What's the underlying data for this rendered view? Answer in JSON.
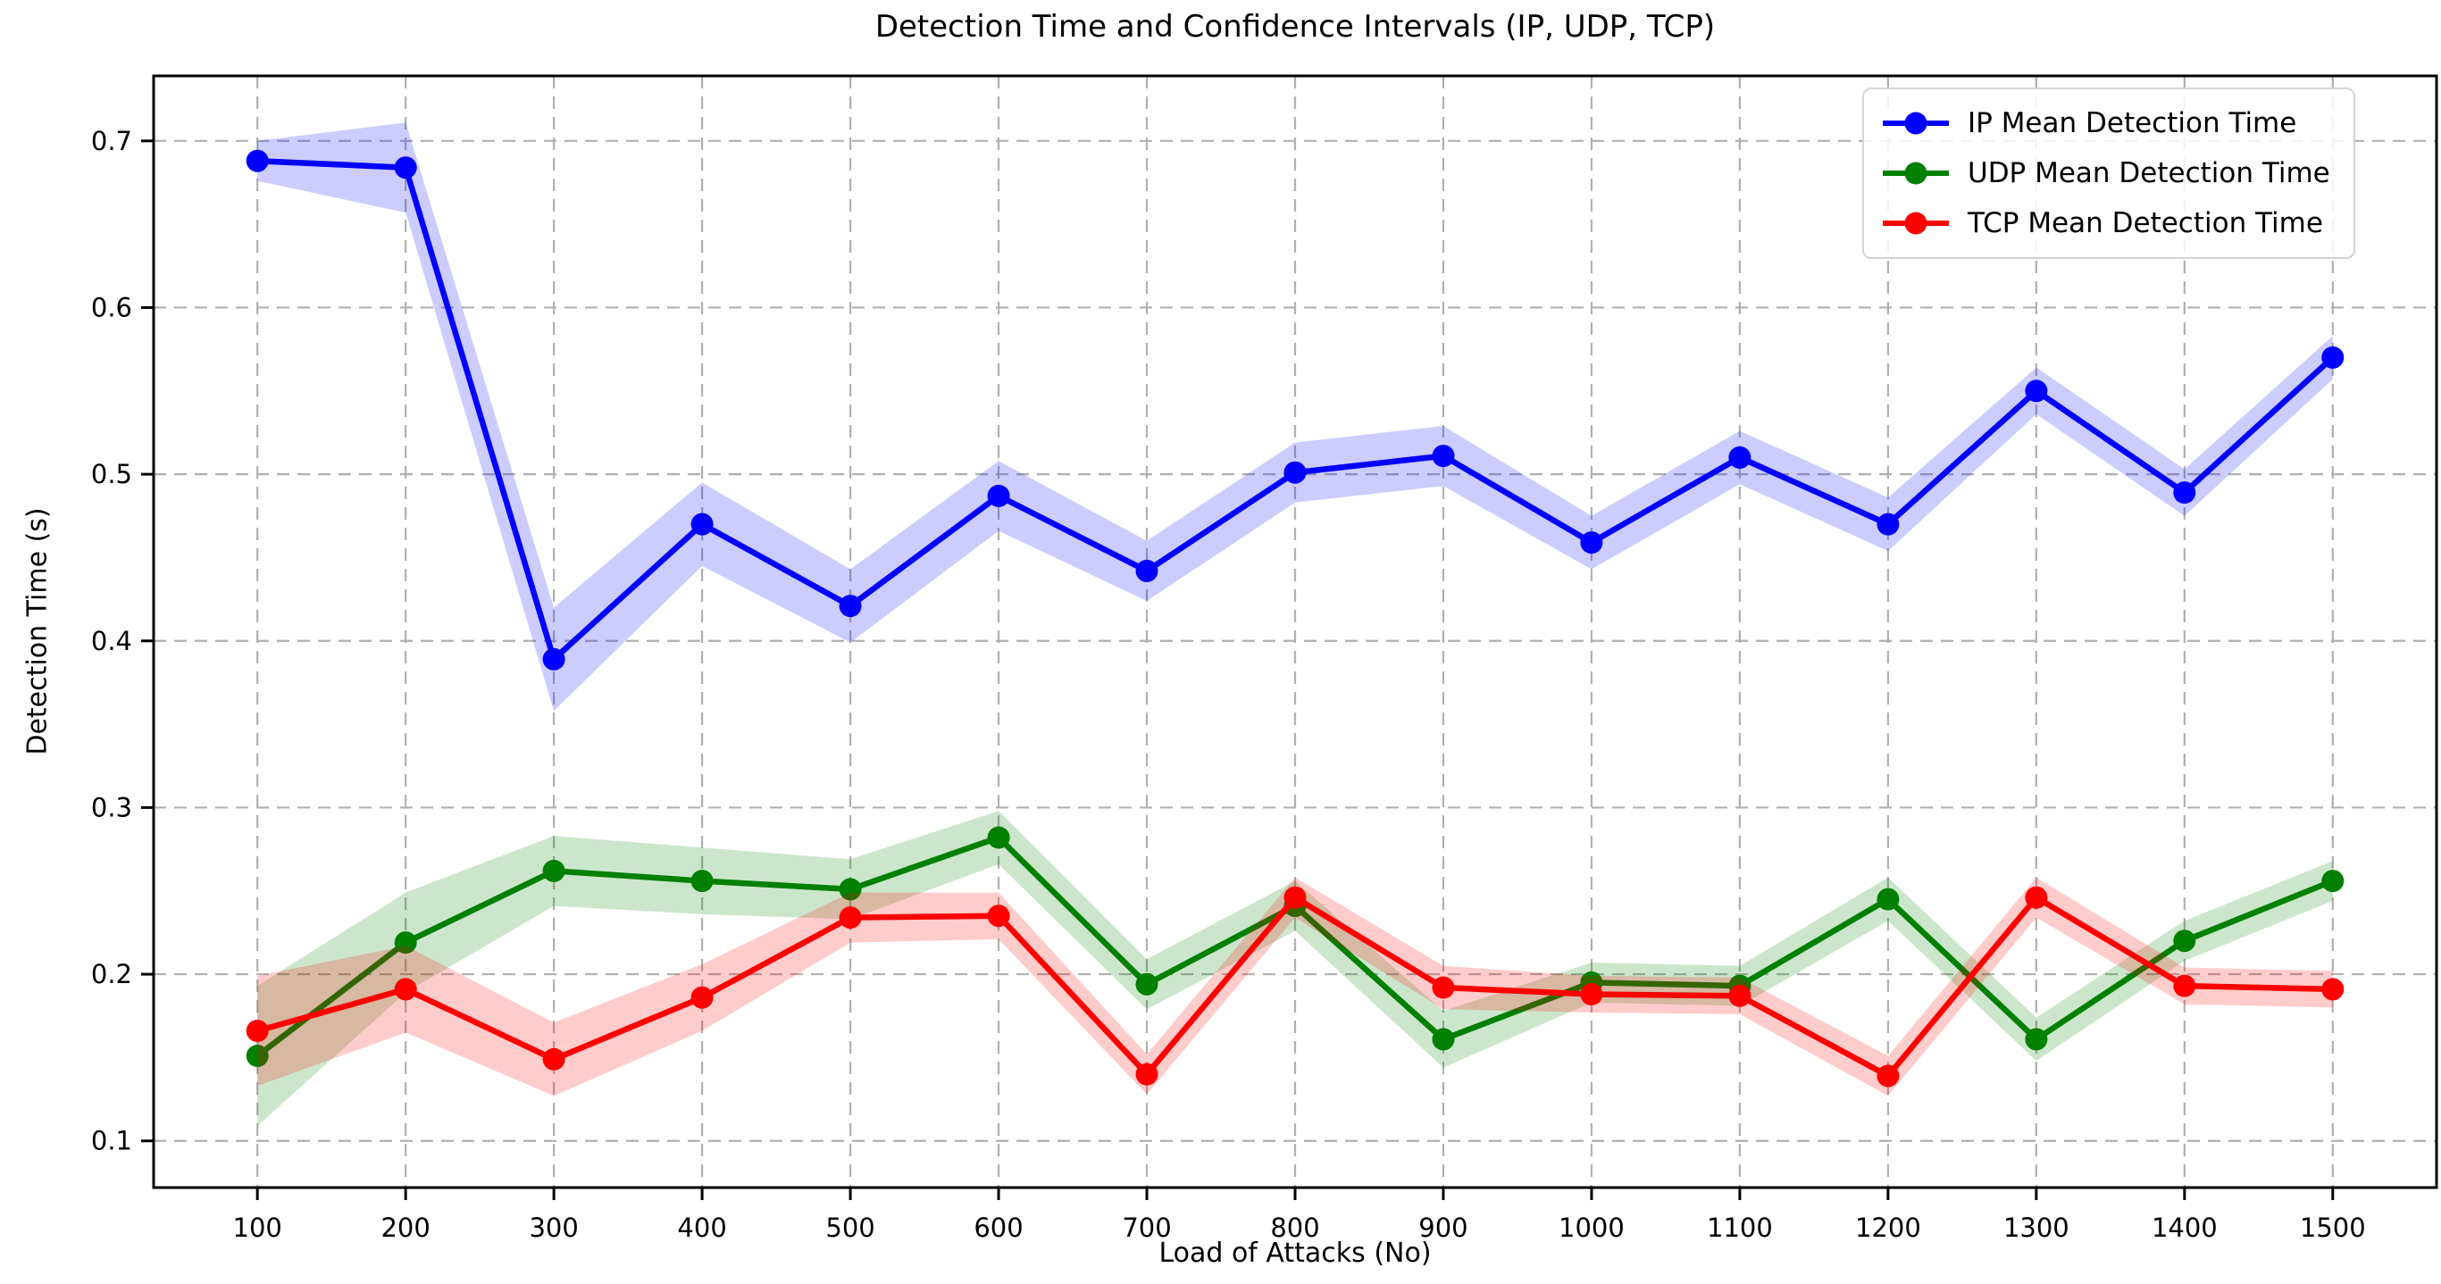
{
  "chart_data": {
    "type": "line",
    "title": "Detection Time and Confidence Intervals (IP, UDP, TCP)",
    "xlabel": "Load of Attacks (No)",
    "ylabel": "Detection Time (s)",
    "x": [
      100,
      200,
      300,
      400,
      500,
      600,
      700,
      800,
      900,
      1000,
      1100,
      1200,
      1300,
      1400,
      1500
    ],
    "xticks": [
      100,
      200,
      300,
      400,
      500,
      600,
      700,
      800,
      900,
      1000,
      1100,
      1200,
      1300,
      1400,
      1500
    ],
    "yticks": [
      0.1,
      0.2,
      0.3,
      0.4,
      0.5,
      0.6,
      0.7
    ],
    "xlim": [
      30,
      1570
    ],
    "ylim": [
      0.072,
      0.739
    ],
    "grid": true,
    "grid_style": "dashed",
    "legend_position": "upper right",
    "series": [
      {
        "name": "IP Mean Detection Time",
        "color": "#0000ff",
        "values": [
          0.688,
          0.684,
          0.389,
          0.47,
          0.421,
          0.487,
          0.442,
          0.501,
          0.511,
          0.459,
          0.51,
          0.47,
          0.55,
          0.489,
          0.57
        ],
        "ci": [
          0.012,
          0.027,
          0.031,
          0.025,
          0.022,
          0.021,
          0.018,
          0.018,
          0.018,
          0.016,
          0.016,
          0.016,
          0.014,
          0.014,
          0.013
        ]
      },
      {
        "name": "UDP Mean Detection Time",
        "color": "#008000",
        "values": [
          0.151,
          0.219,
          0.262,
          0.256,
          0.251,
          0.282,
          0.194,
          0.241,
          0.161,
          0.195,
          0.193,
          0.245,
          0.161,
          0.22,
          0.256
        ],
        "ci": [
          0.042,
          0.03,
          0.021,
          0.02,
          0.018,
          0.016,
          0.015,
          0.015,
          0.017,
          0.012,
          0.012,
          0.013,
          0.013,
          0.012,
          0.012
        ]
      },
      {
        "name": "TCP Mean Detection Time",
        "color": "#ff0000",
        "values": [
          0.166,
          0.191,
          0.149,
          0.186,
          0.234,
          0.235,
          0.14,
          0.246,
          0.192,
          0.188,
          0.187,
          0.139,
          0.246,
          0.193,
          0.191
        ],
        "ci": [
          0.033,
          0.026,
          0.022,
          0.02,
          0.015,
          0.014,
          0.012,
          0.012,
          0.013,
          0.011,
          0.011,
          0.012,
          0.012,
          0.011,
          0.011
        ]
      }
    ]
  }
}
